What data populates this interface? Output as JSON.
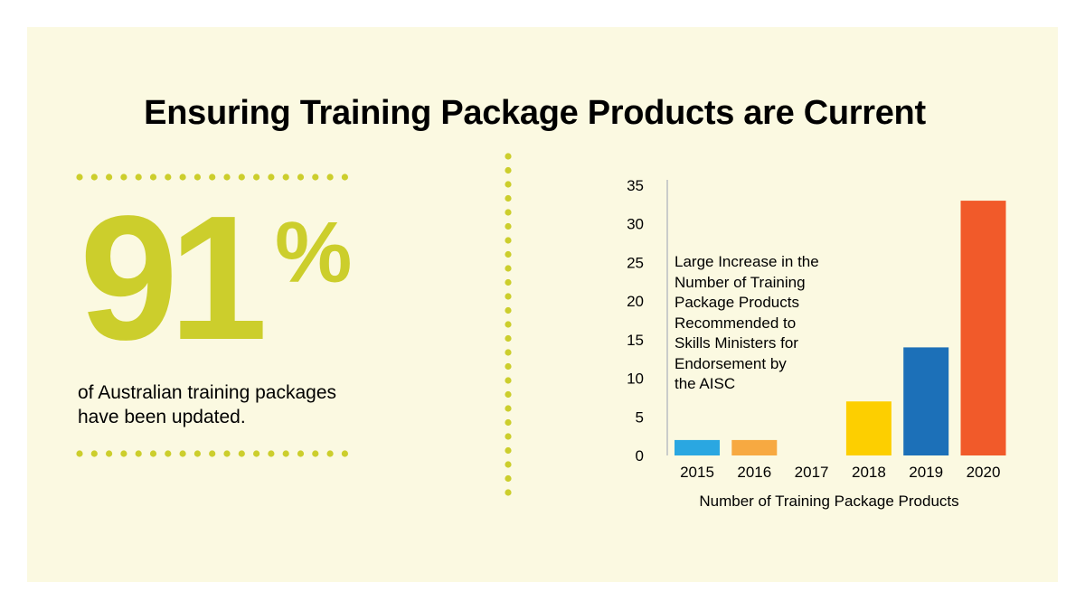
{
  "page": {
    "title": "Ensuring Training Package Products are Current",
    "accent_color": "#ccce2c",
    "background_color": "#fbf9e1"
  },
  "stat": {
    "number": "91",
    "symbol": "%",
    "description_line1": "of Australian training packages",
    "description_line2": "have been updated."
  },
  "chart_data": {
    "type": "bar",
    "categories": [
      "2015",
      "2016",
      "2017",
      "2018",
      "2019",
      "2020"
    ],
    "values": [
      2,
      2,
      0,
      7,
      14,
      33
    ],
    "colors": [
      "#2aa7e1",
      "#f7a941",
      "#cccccc",
      "#fdcf00",
      "#1c70b8",
      "#f15a2a"
    ],
    "xlabel": "Number of Training Package Products",
    "ylabel": "",
    "ylim": [
      0,
      35
    ],
    "yticks": [
      0,
      5,
      10,
      15,
      20,
      25,
      30,
      35
    ],
    "grid": false,
    "annotation_lines": [
      "Large Increase in the",
      "Number of Training",
      "Package Products",
      "Recommended to",
      "Skills Ministers for",
      "Endorsement by",
      "the AISC"
    ]
  }
}
